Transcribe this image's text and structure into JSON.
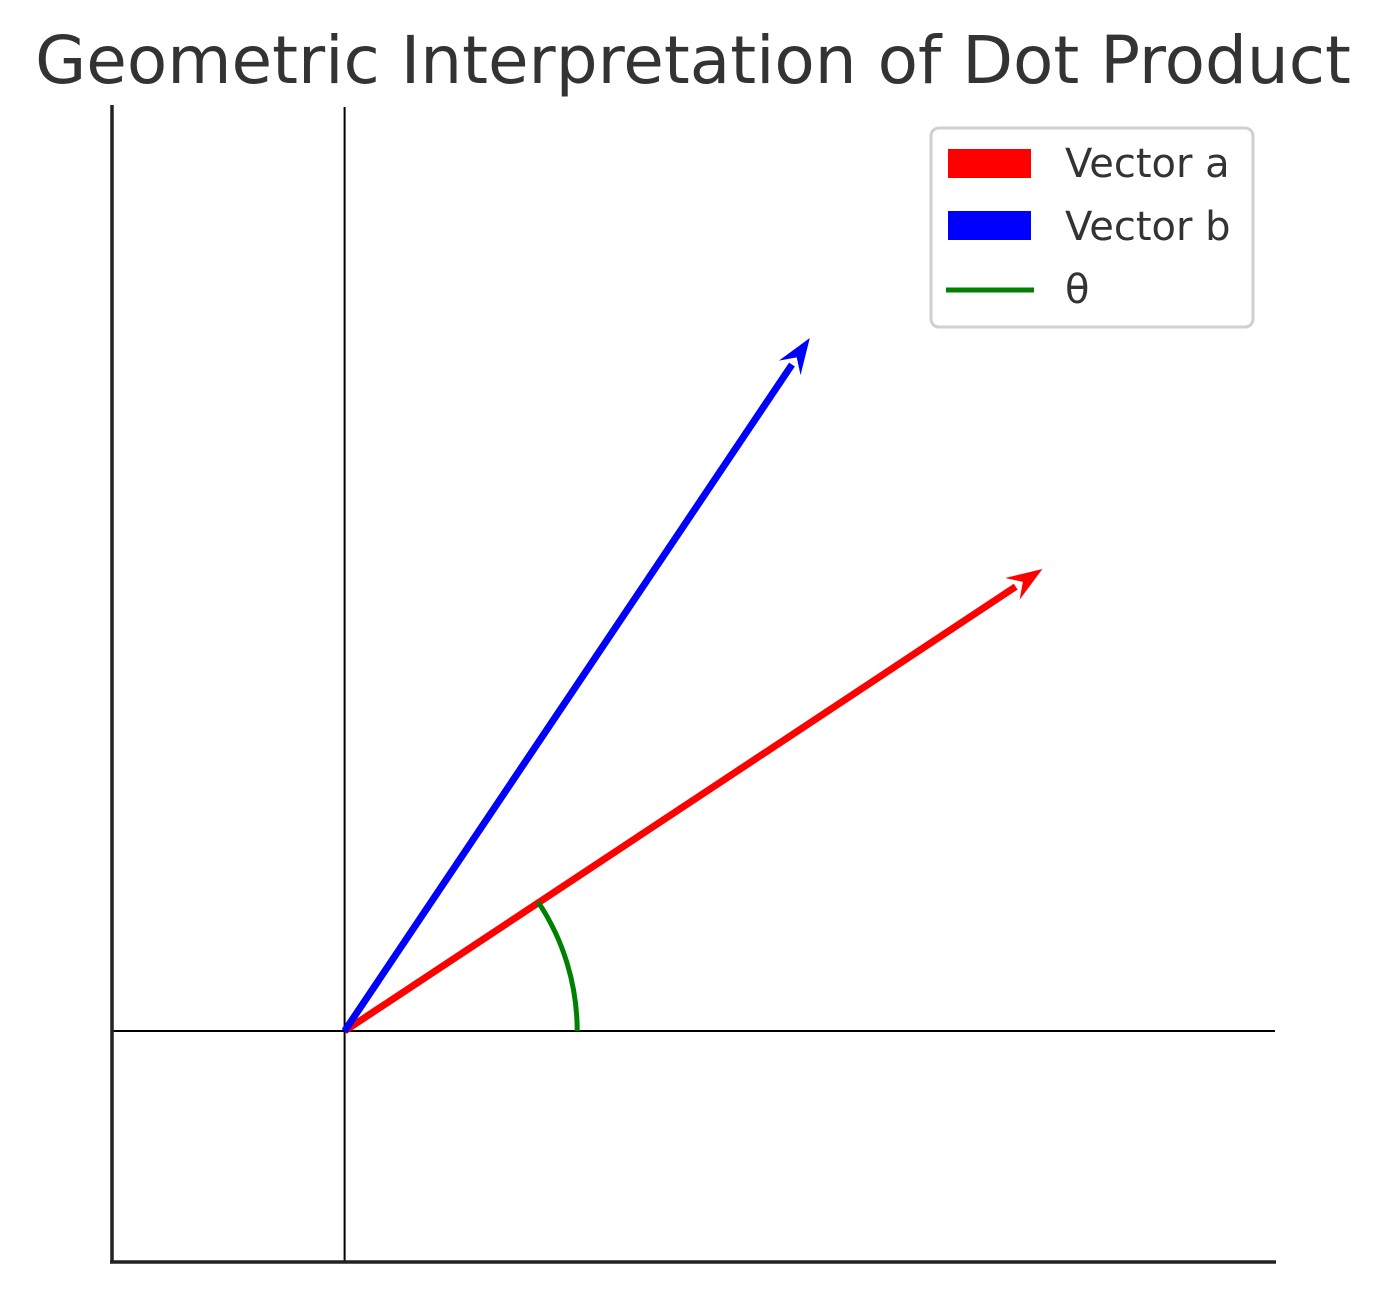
{
  "chart_data": {
    "type": "vector",
    "title": "Geometric Interpretation of Dot Product",
    "xlabel": "",
    "ylabel": "",
    "xlim": [
      -1,
      4
    ],
    "ylim": [
      -1,
      4
    ],
    "grid": false,
    "axis_ticks": false,
    "reference_lines": {
      "x": 0,
      "y": 0
    },
    "origin": [
      0,
      0
    ],
    "vectors": [
      {
        "name": "Vector a",
        "from": [
          0,
          0
        ],
        "to": [
          3,
          2
        ],
        "color": "#ff0000"
      },
      {
        "name": "Vector b",
        "from": [
          0,
          0
        ],
        "to": [
          2,
          3
        ],
        "color": "#0000ff"
      }
    ],
    "angle_arc": {
      "name": "θ",
      "center": [
        0,
        0
      ],
      "radius": 1,
      "from_angle_deg": 0,
      "to_angle_deg": 33.69,
      "color": "#008000"
    },
    "legend": {
      "position": "upper right",
      "entries": [
        "Vector a",
        "Vector b",
        "θ"
      ]
    }
  }
}
